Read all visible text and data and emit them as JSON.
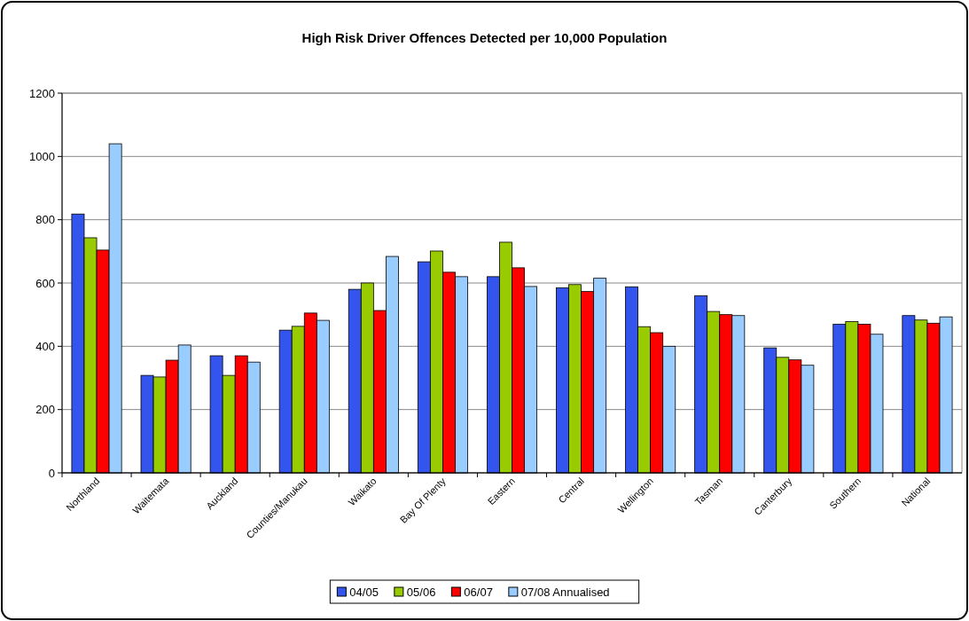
{
  "chart_data": {
    "type": "bar",
    "title": "High Risk Driver Offences Detected per 10,000 Population",
    "categories": [
      "Northland",
      "Waitemata",
      "Auckland",
      "Counties/Manukau",
      "Waikato",
      "Bay Of Plenty",
      "Eastern",
      "Central",
      "Wellington",
      "Tasman",
      "Canterbury",
      "Southern",
      "National"
    ],
    "series": [
      {
        "name": "04/05",
        "color": "#3355ee",
        "values": [
          818,
          308,
          370,
          451,
          580,
          667,
          620,
          585,
          588,
          560,
          395,
          470,
          497
        ]
      },
      {
        "name": "05/06",
        "color": "#99cc00",
        "values": [
          743,
          303,
          308,
          463,
          600,
          701,
          729,
          595,
          462,
          510,
          365,
          478,
          483
        ]
      },
      {
        "name": "06/07",
        "color": "#ff0000",
        "values": [
          704,
          356,
          370,
          505,
          513,
          634,
          648,
          573,
          443,
          500,
          357,
          470,
          473
        ]
      },
      {
        "name": "07/08 Annualised",
        "color": "#99ccff",
        "values": [
          1040,
          404,
          350,
          482,
          684,
          620,
          589,
          615,
          400,
          497,
          340,
          438,
          493
        ]
      }
    ],
    "ylim": [
      0,
      1200
    ],
    "yticks": [
      0,
      200,
      400,
      600,
      800,
      1000,
      1200
    ],
    "grid": "y",
    "legend": "bottom"
  }
}
